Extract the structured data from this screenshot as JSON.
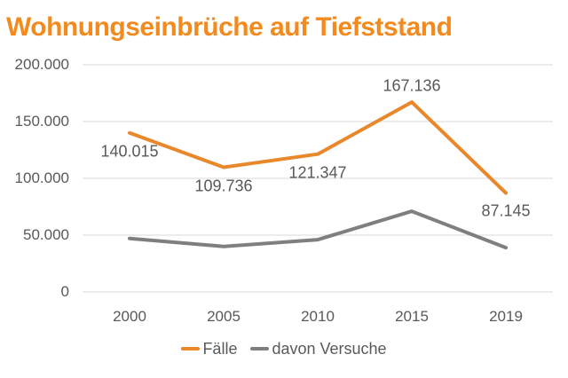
{
  "title": "Wohnungseinbrüche auf Tiefststand",
  "colors": {
    "title_orange": "#F28A1E",
    "faelle_orange": "#E8882B",
    "versuche_gray": "#7F7F7F",
    "axis_text": "#595959",
    "gridline": "#D9D9D9",
    "background": "#FFFFFF"
  },
  "legend": {
    "position": "bottom-center",
    "items": [
      {
        "label": "Fälle",
        "color": "#E8882B"
      },
      {
        "label": "davon Versuche",
        "color": "#7F7F7F"
      }
    ]
  },
  "chart_data": {
    "type": "line",
    "title": "Wohnungseinbrüche auf Tiefststand",
    "categories": [
      "2000",
      "2005",
      "2010",
      "2015",
      "2019"
    ],
    "series": [
      {
        "name": "Fälle",
        "color": "#E8882B",
        "values": [
          140015,
          109736,
          121347,
          167136,
          87145
        ],
        "data_labels": [
          "140.015",
          "109.736",
          "121.347",
          "167.136",
          "87.145"
        ],
        "label_placement": [
          "below",
          "below",
          "below",
          "above",
          "below"
        ]
      },
      {
        "name": "davon Versuche",
        "color": "#7F7F7F",
        "values": [
          47000,
          40000,
          46000,
          71000,
          39000
        ],
        "data_labels": null,
        "label_placement": null
      }
    ],
    "xlabel": "",
    "ylabel": "",
    "ylim": [
      0,
      200000
    ],
    "yticks": [
      {
        "value": 0,
        "label": "0"
      },
      {
        "value": 50000,
        "label": "50.000"
      },
      {
        "value": 100000,
        "label": "100.000"
      },
      {
        "value": 150000,
        "label": "150.000"
      },
      {
        "value": 200000,
        "label": "200.000"
      }
    ],
    "grid": true,
    "gridlines_horizontal_only": true,
    "legend_position": "bottom"
  }
}
